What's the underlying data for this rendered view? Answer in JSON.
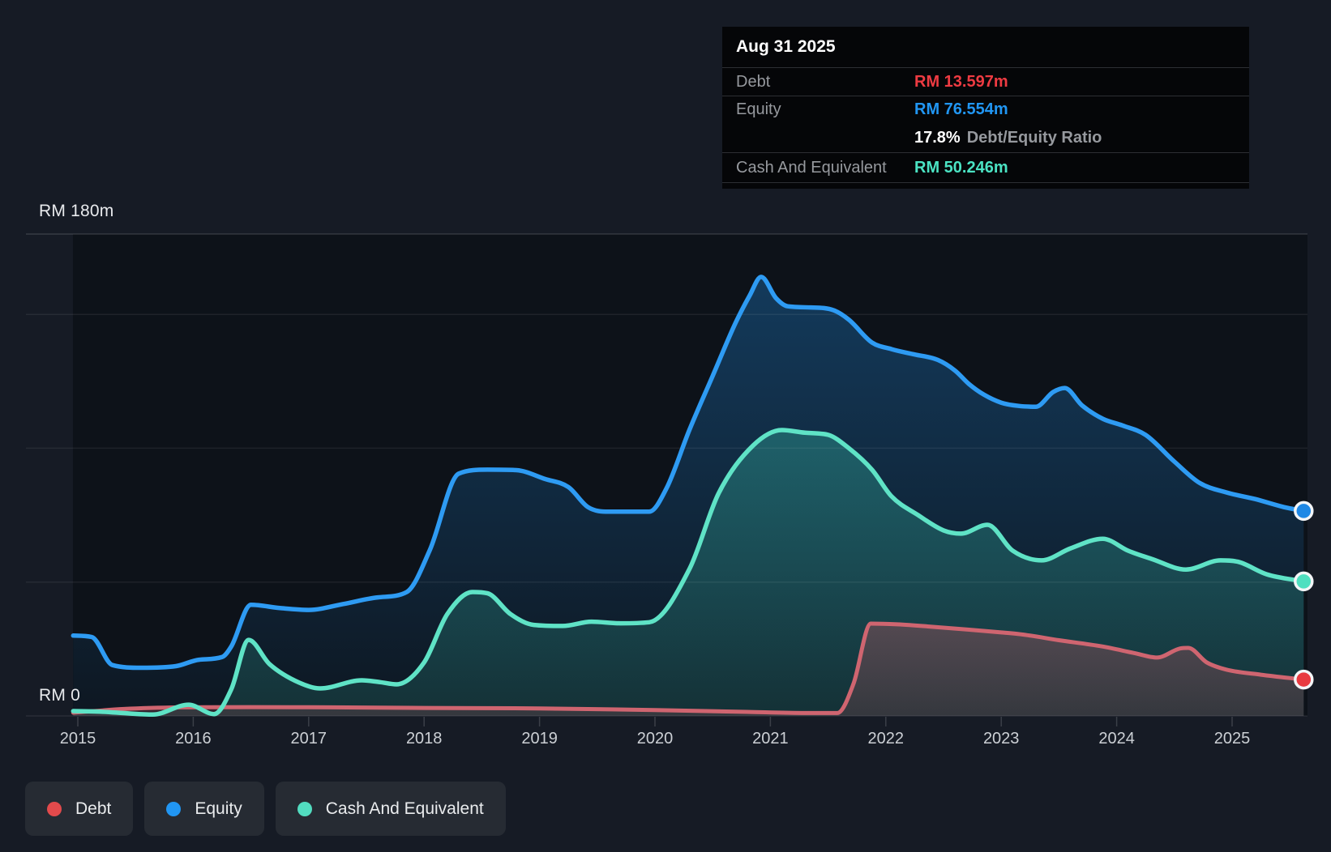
{
  "tooltip": {
    "date": "Aug 31 2025",
    "debt_label": "Debt",
    "debt_value": "RM 13.597m",
    "equity_label": "Equity",
    "equity_value": "RM 76.554m",
    "ratio_value": "17.8%",
    "ratio_label": "Debt/Equity Ratio",
    "cash_label": "Cash And Equivalent",
    "cash_value": "RM 50.246m"
  },
  "axis": {
    "y_max_label": "RM 180m",
    "y_min_label": "RM 0",
    "years": [
      "2015",
      "2016",
      "2017",
      "2018",
      "2019",
      "2020",
      "2021",
      "2022",
      "2023",
      "2024",
      "2025"
    ]
  },
  "legend": {
    "items": [
      {
        "label": "Debt",
        "color": "#e24a4c"
      },
      {
        "label": "Equity",
        "color": "#2196f3"
      },
      {
        "label": "Cash And Equivalent",
        "color": "#52dcc0"
      }
    ]
  },
  "colors": {
    "debt_line": "#cf6570",
    "debt_dot": "#e83a40",
    "debt_text": "#ee3b42",
    "equity_line": "#2e9bf3",
    "equity_dot": "#1e88e5",
    "equity_text": "#2196f3",
    "cash_line": "#5fe3c6",
    "cash_dot": "#4fdfc0",
    "cash_text": "#4be3c3"
  },
  "chart_data": {
    "type": "area",
    "title": "Debt to Equity History (RM millions)",
    "x_range": [
      2014.96,
      2025.62
    ],
    "ylim": [
      0,
      180
    ],
    "y_gridlines_m": [
      180,
      150,
      100,
      50
    ],
    "unit": "RM m",
    "series": [
      {
        "name": "Equity",
        "points": [
          [
            2014.96,
            30
          ],
          [
            2015.12,
            29.5
          ],
          [
            2015.3,
            19
          ],
          [
            2015.55,
            18
          ],
          [
            2015.85,
            18.6
          ],
          [
            2016.05,
            21
          ],
          [
            2016.25,
            22
          ],
          [
            2016.33,
            26
          ],
          [
            2016.5,
            41.5
          ],
          [
            2016.75,
            40.3
          ],
          [
            2017.0,
            39.6
          ],
          [
            2017.3,
            41.8
          ],
          [
            2017.6,
            44.3
          ],
          [
            2017.85,
            46.3
          ],
          [
            2018.05,
            62
          ],
          [
            2018.3,
            90.5
          ],
          [
            2018.55,
            92
          ],
          [
            2018.8,
            91.8
          ],
          [
            2019.05,
            88.5
          ],
          [
            2019.25,
            85.5
          ],
          [
            2019.42,
            78
          ],
          [
            2019.6,
            76.3
          ],
          [
            2019.95,
            76.3
          ],
          [
            2020.1,
            85
          ],
          [
            2020.3,
            107
          ],
          [
            2020.5,
            127
          ],
          [
            2020.7,
            147
          ],
          [
            2020.82,
            157
          ],
          [
            2020.92,
            164
          ],
          [
            2021.05,
            156
          ],
          [
            2021.15,
            153
          ],
          [
            2021.35,
            152.6
          ],
          [
            2021.55,
            151.5
          ],
          [
            2021.68,
            148
          ],
          [
            2021.88,
            139.5
          ],
          [
            2022.05,
            137
          ],
          [
            2022.25,
            135
          ],
          [
            2022.45,
            133
          ],
          [
            2022.6,
            129
          ],
          [
            2022.72,
            124
          ],
          [
            2022.85,
            120
          ],
          [
            2023.0,
            117
          ],
          [
            2023.15,
            115.8
          ],
          [
            2023.3,
            115.5
          ],
          [
            2023.45,
            121
          ],
          [
            2023.55,
            122.5
          ],
          [
            2023.7,
            116
          ],
          [
            2023.88,
            111
          ],
          [
            2024.05,
            108.5
          ],
          [
            2024.25,
            105
          ],
          [
            2024.5,
            95
          ],
          [
            2024.72,
            87
          ],
          [
            2024.95,
            83.5
          ],
          [
            2025.2,
            81
          ],
          [
            2025.45,
            78
          ],
          [
            2025.62,
            76.554
          ]
        ],
        "end_value_m": 76.554
      },
      {
        "name": "Cash And Equivalent",
        "points": [
          [
            2014.96,
            1.8
          ],
          [
            2015.2,
            1.6
          ],
          [
            2015.45,
            0.9
          ],
          [
            2015.65,
            0.5
          ],
          [
            2015.96,
            4.2
          ],
          [
            2016.18,
            0.7
          ],
          [
            2016.33,
            10
          ],
          [
            2016.48,
            28.4
          ],
          [
            2016.66,
            19.4
          ],
          [
            2016.92,
            12.4
          ],
          [
            2017.1,
            10.3
          ],
          [
            2017.46,
            13.3
          ],
          [
            2017.62,
            12.6
          ],
          [
            2017.76,
            11.8
          ],
          [
            2018.0,
            20
          ],
          [
            2018.2,
            38
          ],
          [
            2018.42,
            46.3
          ],
          [
            2018.55,
            45.8
          ],
          [
            2018.75,
            38
          ],
          [
            2018.95,
            34
          ],
          [
            2019.2,
            33.6
          ],
          [
            2019.45,
            35.2
          ],
          [
            2019.7,
            34.6
          ],
          [
            2019.95,
            35
          ],
          [
            2020.3,
            55
          ],
          [
            2020.55,
            83
          ],
          [
            2020.85,
            101
          ],
          [
            2021.1,
            106.8
          ],
          [
            2021.3,
            105.8
          ],
          [
            2021.5,
            105
          ],
          [
            2021.68,
            100
          ],
          [
            2021.88,
            92
          ],
          [
            2022.05,
            82
          ],
          [
            2022.28,
            75
          ],
          [
            2022.5,
            69.3
          ],
          [
            2022.65,
            68.1
          ],
          [
            2022.88,
            71.4
          ],
          [
            2023.1,
            61.7
          ],
          [
            2023.35,
            58.1
          ],
          [
            2023.6,
            62.6
          ],
          [
            2023.88,
            66.2
          ],
          [
            2024.1,
            61.7
          ],
          [
            2024.3,
            58.7
          ],
          [
            2024.6,
            54.7
          ],
          [
            2024.9,
            58.1
          ],
          [
            2025.05,
            57.6
          ],
          [
            2025.3,
            52.9
          ],
          [
            2025.62,
            50.246
          ]
        ],
        "end_value_m": 50.246
      },
      {
        "name": "Debt",
        "points": [
          [
            2014.96,
            1.2
          ],
          [
            2015.4,
            2.6
          ],
          [
            2015.9,
            3.2
          ],
          [
            2016.5,
            3.3
          ],
          [
            2017.2,
            3.2
          ],
          [
            2018.0,
            3.0
          ],
          [
            2019.0,
            2.8
          ],
          [
            2020.0,
            2.2
          ],
          [
            2020.8,
            1.5
          ],
          [
            2021.3,
            1.1
          ],
          [
            2021.58,
            1.1
          ],
          [
            2021.72,
            12
          ],
          [
            2021.87,
            34.5
          ],
          [
            2022.1,
            34.2
          ],
          [
            2022.35,
            33.5
          ],
          [
            2022.7,
            32.3
          ],
          [
            2023.0,
            31.2
          ],
          [
            2023.17,
            30.5
          ],
          [
            2023.5,
            28.3
          ],
          [
            2023.87,
            26
          ],
          [
            2024.15,
            23.5
          ],
          [
            2024.35,
            21.8
          ],
          [
            2024.55,
            25.2
          ],
          [
            2024.62,
            25.4
          ],
          [
            2024.78,
            20
          ],
          [
            2024.95,
            17.3
          ],
          [
            2025.25,
            15.4
          ],
          [
            2025.62,
            13.597
          ]
        ],
        "end_value_m": 13.597
      }
    ]
  }
}
